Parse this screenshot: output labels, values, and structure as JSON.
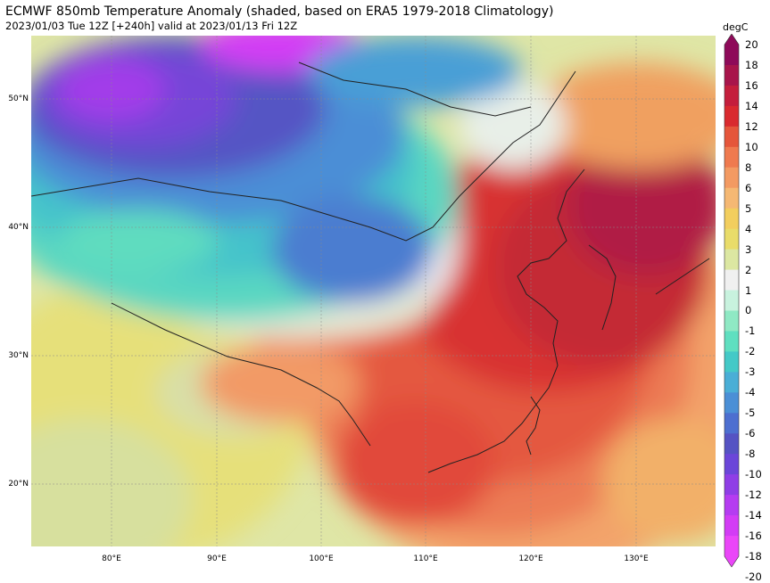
{
  "title": "ECMWF 850mb Temperature Anomaly (shaded, based on ERA5 1979-2018 Climatology)",
  "subtitle": "2023/01/03 Tue 12Z [+240h] valid at 2023/01/13 Fri 12Z",
  "lat_labels": [
    "50°N",
    "40°N",
    "30°N",
    "20°N"
  ],
  "lon_labels": [
    "80°E",
    "90°E",
    "100°E",
    "110°E",
    "120°E",
    "130°E"
  ],
  "colorbar": {
    "unit": "degC",
    "levels": [
      "20",
      "18",
      "16",
      "14",
      "12",
      "10",
      "8",
      "6",
      "5",
      "4",
      "3",
      "2",
      "1",
      "0",
      "-1",
      "-2",
      "-3",
      "-4",
      "-5",
      "-6",
      "-8",
      "-10",
      "-12",
      "-14",
      "-16",
      "-18",
      "-20"
    ],
    "colors": [
      "#8e0a59",
      "#a8154b",
      "#c41e3c",
      "#d92a2f",
      "#e5563b",
      "#ef7a4f",
      "#f39a62",
      "#f5b873",
      "#f2ce5e",
      "#e9dc6a",
      "#dce7a2",
      "#f0f0f0",
      "#c8f2de",
      "#8fe9c4",
      "#5fdfc0",
      "#44c9c7",
      "#4aaed6",
      "#4b8fd6",
      "#4d6fd0",
      "#5553c3",
      "#6b46d9",
      "#8f3ee6",
      "#b53cf1",
      "#d33cf5",
      "#ea46f8"
    ]
  }
}
